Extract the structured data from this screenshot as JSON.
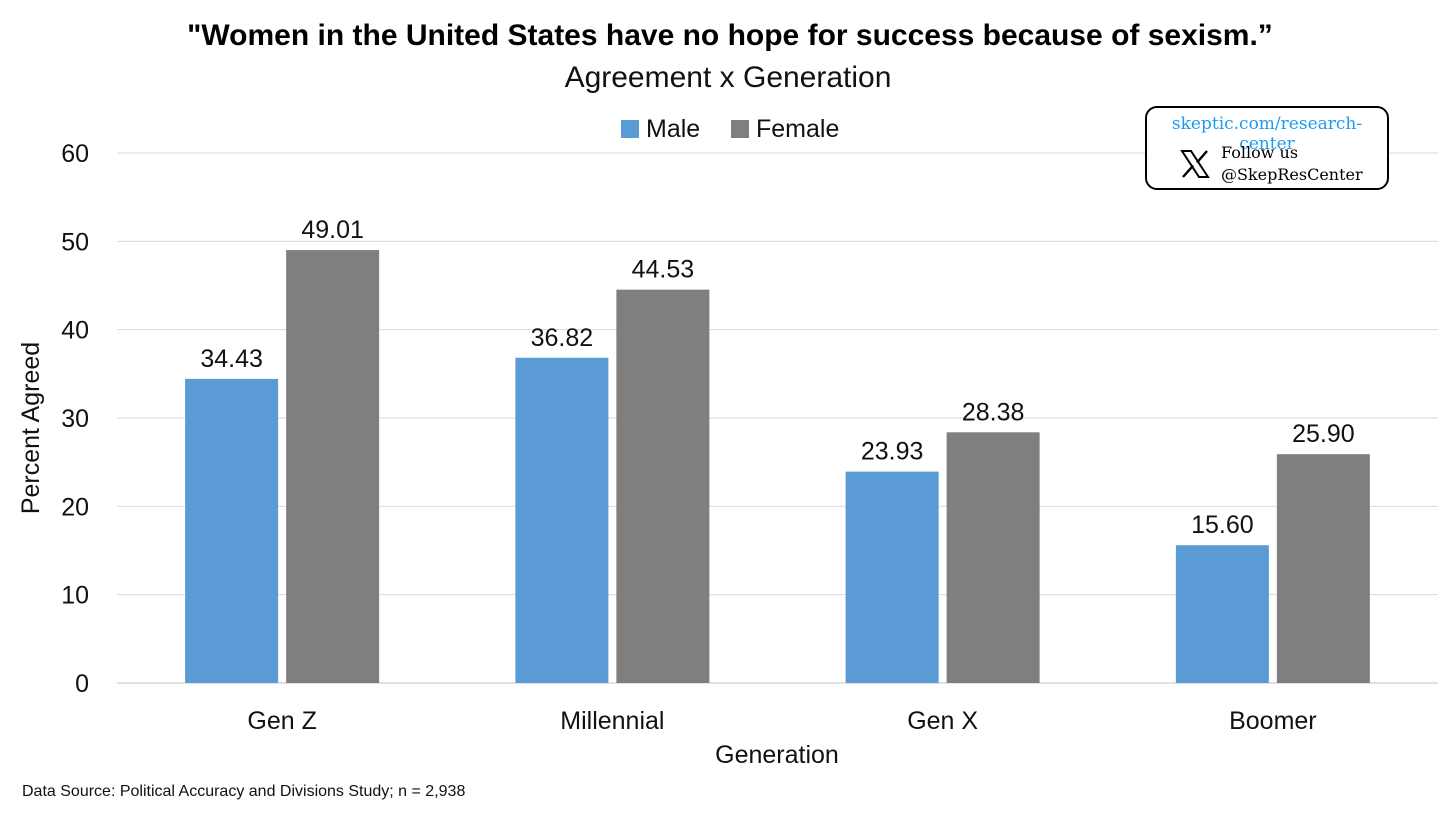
{
  "chart_data": {
    "type": "bar",
    "title": "\"Women in the United States have no hope for success because of sexism.”",
    "subtitle": "Agreement x Generation",
    "categories": [
      "Gen Z",
      "Millennial",
      "Gen X",
      "Boomer"
    ],
    "series": [
      {
        "name": "Male",
        "color": "#5b9bd5",
        "values": [
          34.43,
          36.82,
          23.93,
          15.6
        ],
        "labels": [
          "34.43",
          "36.82",
          "23.93",
          "15.60"
        ]
      },
      {
        "name": "Female",
        "color": "#7f7f7f",
        "values": [
          49.01,
          44.53,
          28.38,
          25.9
        ],
        "labels": [
          "49.01",
          "44.53",
          "28.38",
          "25.90"
        ]
      }
    ],
    "xlabel": "Generation",
    "ylabel": "Percent Agreed",
    "ylim": [
      0,
      60
    ],
    "yticks": [
      "0",
      "10",
      "20",
      "30",
      "40",
      "50",
      "60"
    ],
    "grid": true,
    "legend_position": "top-center"
  },
  "source": "Data Source: Political Accuracy and Divisions Study; n = 2,938",
  "branding": {
    "link_text": "skeptic.com/research-center",
    "follow_text": "Follow us",
    "handle": "@SkepResCenter",
    "icon": "x-logo-icon",
    "link_color": "#1d9bf0"
  }
}
